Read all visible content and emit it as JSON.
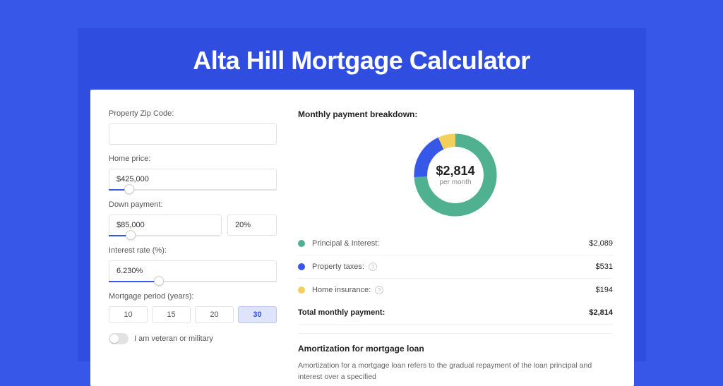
{
  "page": {
    "title": "Alta Hill Mortgage Calculator",
    "colors": {
      "page_bg": "#3657e8",
      "band_bg": "#2f4ee0",
      "card_bg": "#ffffff",
      "text_muted": "#555555",
      "text_strong": "#222222",
      "border": "#e2e2e2"
    }
  },
  "form": {
    "zip": {
      "label": "Property Zip Code:",
      "value": ""
    },
    "home_price": {
      "label": "Home price:",
      "value": "$425,000",
      "slider_pct": 12
    },
    "down_payment": {
      "label": "Down payment:",
      "amount": "$85,000",
      "pct": "20%",
      "slider_pct": 20
    },
    "interest_rate": {
      "label": "Interest rate (%):",
      "value": "6.230%",
      "slider_pct": 30
    },
    "period": {
      "label": "Mortgage period (years):",
      "options": [
        "10",
        "15",
        "20",
        "30"
      ],
      "selected": "30"
    },
    "veteran": {
      "label": "I am veteran or military",
      "on": false
    }
  },
  "breakdown": {
    "title": "Monthly payment breakdown:",
    "donut": {
      "center_amount": "$2,814",
      "center_sub": "per month",
      "slices": [
        {
          "key": "principal_interest",
          "color": "#4fb18f",
          "pct": 74
        },
        {
          "key": "property_taxes",
          "color": "#3657e8",
          "pct": 19
        },
        {
          "key": "home_insurance",
          "color": "#f3cf5b",
          "pct": 7
        }
      ],
      "stroke_width": 18,
      "size": 130
    },
    "rows": [
      {
        "label": "Principal & Interest:",
        "value": "$2,089",
        "color": "#4fb18f",
        "help": false
      },
      {
        "label": "Property taxes:",
        "value": "$531",
        "color": "#3657e8",
        "help": true
      },
      {
        "label": "Home insurance:",
        "value": "$194",
        "color": "#f3cf5b",
        "help": true
      }
    ],
    "total": {
      "label": "Total monthly payment:",
      "value": "$2,814"
    }
  },
  "amortization": {
    "title": "Amortization for mortgage loan",
    "text": "Amortization for a mortgage loan refers to the gradual repayment of the loan principal and interest over a specified"
  }
}
